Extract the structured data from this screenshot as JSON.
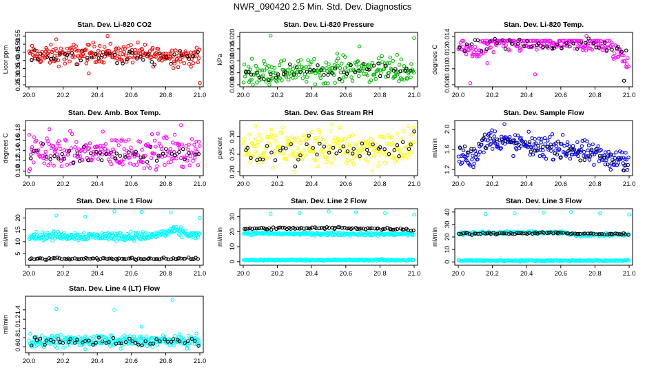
{
  "figure": {
    "title": "NWR_090420  2.5 Min. Std. Dev. Diagnostics"
  },
  "chart_data": [
    {
      "type": "scatter",
      "title": "Stan. Dev. Li-820 CO2",
      "ylabel": "Licor ppm",
      "xlim": [
        20.0,
        21.0
      ],
      "ylim": [
        0.25,
        0.56
      ],
      "xticks": [
        "20.0",
        "20.2",
        "20.4",
        "20.6",
        "20.8",
        "21.0"
      ],
      "yticks": [
        "0.25",
        "0.30",
        "0.35",
        "0.40",
        "0.45",
        "0.50",
        "0.55"
      ],
      "color": "#ff0000",
      "series": [
        {
          "trend": [
            [
              20.0,
              0.43
            ],
            [
              20.2,
              0.43
            ],
            [
              20.4,
              0.45
            ],
            [
              20.6,
              0.44
            ],
            [
              20.8,
              0.43
            ],
            [
              21.0,
              0.42
            ]
          ],
          "spread": 0.03,
          "n": 230,
          "outliers": [
            [
              20.35,
              0.32
            ],
            [
              20.46,
              0.55
            ],
            [
              20.16,
              0.53
            ],
            [
              21.0,
              0.26
            ]
          ]
        },
        {
          "color": "#000000",
          "trend": [
            [
              20.0,
              0.42
            ],
            [
              21.0,
              0.42
            ]
          ],
          "spread": 0.025,
          "n": 45
        }
      ]
    },
    {
      "type": "scatter",
      "title": "Stan. Dev. Li-820 Pressure",
      "ylabel": "kPa",
      "xlim": [
        20.0,
        21.0
      ],
      "ylim": [
        0.0,
        0.021
      ],
      "xticks": [
        "20.0",
        "20.2",
        "20.4",
        "20.6",
        "20.8",
        "21.0"
      ],
      "yticks": [
        "0.000",
        "0.005",
        "0.010",
        "0.015",
        "0.020"
      ],
      "color": "#00bb00",
      "series": [
        {
          "trend": [
            [
              20.0,
              0.005
            ],
            [
              20.5,
              0.006
            ],
            [
              20.65,
              0.007
            ],
            [
              21.0,
              0.005
            ]
          ],
          "spread": 0.0025,
          "n": 220,
          "outliers": [
            [
              20.16,
              0.0205
            ],
            [
              21.0,
              0.0195
            ],
            [
              20.68,
              0.016
            ],
            [
              20.55,
              0.013
            ],
            [
              20.9,
              0.0125
            ]
          ],
          "floor": 0.0
        },
        {
          "color": "#000000",
          "trend": [
            [
              20.0,
              0.005
            ],
            [
              21.0,
              0.006
            ]
          ],
          "spread": 0.0015,
          "n": 45
        }
      ]
    },
    {
      "type": "scatter",
      "title": "Stan. Dev. Li-820 Temp.",
      "ylabel": "degrees C",
      "xlim": [
        20.0,
        21.0
      ],
      "ylim": [
        0.008,
        0.0143
      ],
      "xticks": [
        "20.0",
        "20.2",
        "20.4",
        "20.6",
        "20.8",
        "21.0"
      ],
      "yticks": [
        "0.008",
        "0.010",
        "0.012",
        "0.014"
      ],
      "color": "#ff00ff",
      "series": [
        {
          "trend": [
            [
              20.0,
              0.0128
            ],
            [
              20.1,
              0.0122
            ],
            [
              20.2,
              0.0132
            ],
            [
              20.6,
              0.0132
            ],
            [
              20.85,
              0.0131
            ],
            [
              20.95,
              0.0118
            ],
            [
              21.0,
              0.0105
            ]
          ],
          "spread": 0.0006,
          "n": 230,
          "cap": 0.0135,
          "outliers": [
            [
              20.07,
              0.0082
            ],
            [
              20.45,
              0.0093
            ],
            [
              20.17,
              0.0107
            ],
            [
              20.75,
              0.0141
            ]
          ]
        },
        {
          "color": "#000000",
          "trend": [
            [
              20.0,
              0.0128
            ],
            [
              20.2,
              0.0131
            ],
            [
              20.8,
              0.013
            ],
            [
              21.0,
              0.012
            ]
          ],
          "spread": 0.0004,
          "n": 45,
          "outliers": [
            [
              20.97,
              0.0085
            ]
          ]
        }
      ]
    },
    {
      "type": "scatter",
      "title": "Stan. Dev. Amb. Box Temp.",
      "ylabel": "degrees C",
      "xlim": [
        20.0,
        21.0
      ],
      "ylim": [
        0.095,
        0.195
      ],
      "xticks": [
        "20.0",
        "20.2",
        "20.4",
        "20.6",
        "20.8",
        "21.0"
      ],
      "yticks": [
        "0.10",
        "0.12",
        "0.14",
        "0.16",
        "0.18"
      ],
      "color": "#ff00ff",
      "series": [
        {
          "trend": [
            [
              20.0,
              0.137
            ],
            [
              21.0,
              0.137
            ]
          ],
          "spread": 0.016,
          "n": 230,
          "outliers": [
            [
              20.89,
              0.19
            ],
            [
              20.12,
              0.182
            ],
            [
              20.0,
              0.1
            ],
            [
              20.98,
              0.158
            ]
          ]
        },
        {
          "color": "#000000",
          "trend": [
            [
              20.0,
              0.135
            ],
            [
              21.0,
              0.135
            ]
          ],
          "spread": 0.01,
          "n": 45
        }
      ]
    },
    {
      "type": "scatter",
      "title": "Stan. Dev. Gas Stream RH",
      "ylabel": "percent",
      "xlim": [
        20.0,
        21.0
      ],
      "ylim": [
        0.195,
        0.34
      ],
      "xticks": [
        "20.0",
        "20.2",
        "20.4",
        "20.6",
        "20.8",
        "21.0"
      ],
      "yticks": [
        "0.20",
        "0.25",
        "0.30"
      ],
      "color": "#ffff00",
      "series": [
        {
          "trend": [
            [
              20.0,
              0.27
            ],
            [
              21.0,
              0.265
            ]
          ],
          "spread": 0.027,
          "n": 230,
          "outliers": [
            [
              20.52,
              0.335
            ],
            [
              20.07,
              0.33
            ],
            [
              20.3,
              0.2
            ]
          ]
        },
        {
          "color": "#000000",
          "trend": [
            [
              20.0,
              0.262
            ],
            [
              21.0,
              0.262
            ]
          ],
          "spread": 0.018,
          "n": 45,
          "outliers": [
            [
              21.0,
              0.315
            ]
          ]
        }
      ]
    },
    {
      "type": "scatter",
      "title": "Stan. Dev. Sample Flow",
      "ylabel": "ml/min",
      "xlim": [
        20.0,
        21.0
      ],
      "ylim": [
        1.12,
        2.13
      ],
      "xticks": [
        "20.0",
        "20.2",
        "20.4",
        "20.6",
        "20.8",
        "21.0"
      ],
      "yticks": [
        "1.2",
        "1.6",
        "2.0"
      ],
      "color": "#0000ff",
      "series": [
        {
          "trend": [
            [
              20.0,
              1.48
            ],
            [
              20.08,
              1.42
            ],
            [
              20.18,
              1.82
            ],
            [
              20.3,
              1.72
            ],
            [
              20.5,
              1.65
            ],
            [
              20.65,
              1.62
            ],
            [
              20.8,
              1.48
            ],
            [
              21.0,
              1.38
            ]
          ],
          "spread": 0.11,
          "n": 230,
          "outliers": [
            [
              20.27,
              2.1
            ],
            [
              20.97,
              1.18
            ]
          ]
        },
        {
          "color": "#000000",
          "trend": [
            [
              20.0,
              1.48
            ],
            [
              20.2,
              1.8
            ],
            [
              20.5,
              1.62
            ],
            [
              21.0,
              1.38
            ]
          ],
          "spread": 0.08,
          "n": 45
        }
      ]
    },
    {
      "type": "scatter",
      "title": "Stan. Dev. Line 1 Flow",
      "ylabel": "ml/min",
      "xlim": [
        20.0,
        21.0
      ],
      "ylim": [
        1.0,
        23.0
      ],
      "xticks": [
        "20.0",
        "20.2",
        "20.4",
        "20.6",
        "20.8",
        "21.0"
      ],
      "yticks": [
        "5",
        "10",
        "15",
        "20"
      ],
      "color": "#00ffff",
      "series": [
        {
          "trend": [
            [
              20.0,
              12.5
            ],
            [
              20.7,
              12.3
            ],
            [
              20.85,
              14.5
            ],
            [
              21.0,
              12.2
            ]
          ],
          "spread": 0.9,
          "n": 260,
          "outliers": [
            [
              20.16,
              21.0
            ],
            [
              20.33,
              20.5
            ],
            [
              20.5,
              22.8
            ],
            [
              20.66,
              22.6
            ],
            [
              20.83,
              22.3
            ],
            [
              21.0,
              20.0
            ]
          ]
        },
        {
          "color": "#000000",
          "trend": [
            [
              20.0,
              2.8
            ],
            [
              21.0,
              2.9
            ]
          ],
          "spread": 0.2,
          "n": 80
        }
      ]
    },
    {
      "type": "scatter",
      "title": "Stan. Dev. Line 2 Flow",
      "ylabel": "ml/min",
      "xlim": [
        20.0,
        21.0
      ],
      "ylim": [
        -1.0,
        34.0
      ],
      "xticks": [
        "20.0",
        "20.2",
        "20.4",
        "20.6",
        "20.8",
        "21.0"
      ],
      "yticks": [
        "0",
        "10",
        "20",
        "30"
      ],
      "color": "#00ffff",
      "series": [
        {
          "trend": [
            [
              20.0,
              18.8
            ],
            [
              21.0,
              18.3
            ]
          ],
          "spread": 0.5,
          "n": 220,
          "outliers": [
            [
              20.16,
              32.0
            ],
            [
              20.33,
              32.5
            ],
            [
              20.5,
              33.5
            ],
            [
              20.66,
              33.0
            ],
            [
              20.83,
              32.5
            ],
            [
              21.0,
              31.5
            ]
          ]
        },
        {
          "trend": [
            [
              20.0,
              1.1
            ],
            [
              21.0,
              1.1
            ]
          ],
          "spread": 0.3,
          "n": 220
        },
        {
          "color": "#000000",
          "trend": [
            [
              20.0,
              22.0
            ],
            [
              20.6,
              22.5
            ],
            [
              21.0,
              21.5
            ]
          ],
          "spread": 0.4,
          "n": 80
        }
      ]
    },
    {
      "type": "scatter",
      "title": "Stan. Dev. Line 3 Flow",
      "ylabel": "ml/min",
      "xlim": [
        20.0,
        21.0
      ],
      "ylim": [
        -1.0,
        41.0
      ],
      "xticks": [
        "20.0",
        "20.2",
        "20.4",
        "20.6",
        "20.8",
        "21.0"
      ],
      "yticks": [
        "0",
        "10",
        "20",
        "30",
        "40"
      ],
      "color": "#00ffff",
      "series": [
        {
          "trend": [
            [
              20.0,
              23.0
            ],
            [
              20.6,
              23.5
            ],
            [
              20.7,
              21.5
            ],
            [
              21.0,
              22.0
            ]
          ],
          "spread": 0.6,
          "n": 220,
          "outliers": [
            [
              20.16,
              38.5
            ],
            [
              20.33,
              39.0
            ],
            [
              20.5,
              39.5
            ],
            [
              20.66,
              40.0
            ],
            [
              20.83,
              39.0
            ],
            [
              21.0,
              38.0
            ]
          ]
        },
        {
          "trend": [
            [
              20.0,
              1.0
            ],
            [
              21.0,
              1.0
            ]
          ],
          "spread": 0.3,
          "n": 220
        },
        {
          "color": "#000000",
          "trend": [
            [
              20.0,
              22.5
            ],
            [
              20.6,
              23.5
            ],
            [
              20.7,
              22.5
            ],
            [
              21.0,
              22.3
            ]
          ],
          "spread": 0.4,
          "n": 80
        }
      ]
    },
    {
      "type": "scatter",
      "title": "Stan. Dev. Line 4 (LT) Flow",
      "ylabel": "ml/min",
      "xlim": [
        20.0,
        21.0
      ],
      "ylim": [
        0.52,
        1.65
      ],
      "xticks": [
        "20.0",
        "20.2",
        "20.4",
        "20.6",
        "20.8",
        "21.0"
      ],
      "yticks": [
        "0.6",
        "0.8",
        "1.0",
        "1.2",
        "1.4"
      ],
      "color": "#00ffff",
      "series": [
        {
          "trend": [
            [
              20.0,
              0.73
            ],
            [
              21.0,
              0.73
            ]
          ],
          "spread": 0.06,
          "n": 260,
          "outliers": [
            [
              20.84,
              1.62
            ],
            [
              20.16,
              1.42
            ],
            [
              20.5,
              1.4
            ],
            [
              20.66,
              1.04
            ],
            [
              20.33,
              0.55
            ]
          ]
        },
        {
          "color": "#000000",
          "trend": [
            [
              20.0,
              0.72
            ],
            [
              21.0,
              0.72
            ]
          ],
          "spread": 0.05,
          "n": 50
        }
      ]
    }
  ]
}
